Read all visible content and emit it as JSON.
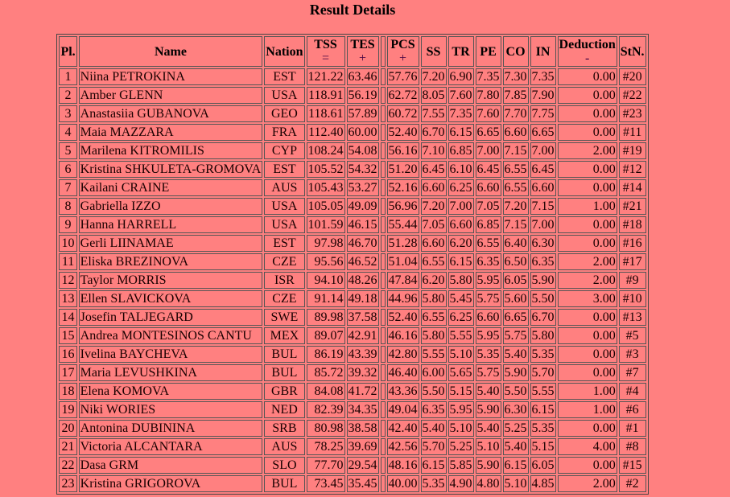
{
  "title": "Result Details",
  "headers": {
    "pl": "Pl.",
    "name": "Name",
    "nation": "Nation",
    "tss": "TSS",
    "tss_sym": "=",
    "tes": "TES",
    "tes_sym": "+",
    "pcs": "PCS",
    "pcs_sym": "+",
    "ss": "SS",
    "tr": "TR",
    "pe": "PE",
    "co": "CO",
    "in": "IN",
    "ded": "Deduction",
    "ded_sym": "-",
    "stn": "StN."
  },
  "rows": [
    {
      "pl": "1",
      "name": "Niina PETROKINA",
      "nation": "EST",
      "tss": "121.22",
      "tes": "63.46",
      "pcs": "57.76",
      "ss": "7.20",
      "tr": "6.90",
      "pe": "7.35",
      "co": "7.30",
      "in": "7.35",
      "ded": "0.00",
      "stn": "#20"
    },
    {
      "pl": "2",
      "name": "Amber GLENN",
      "nation": "USA",
      "tss": "118.91",
      "tes": "56.19",
      "pcs": "62.72",
      "ss": "8.05",
      "tr": "7.60",
      "pe": "7.80",
      "co": "7.85",
      "in": "7.90",
      "ded": "0.00",
      "stn": "#22"
    },
    {
      "pl": "3",
      "name": "Anastasiia GUBANOVA",
      "nation": "GEO",
      "tss": "118.61",
      "tes": "57.89",
      "pcs": "60.72",
      "ss": "7.55",
      "tr": "7.35",
      "pe": "7.60",
      "co": "7.70",
      "in": "7.75",
      "ded": "0.00",
      "stn": "#23"
    },
    {
      "pl": "4",
      "name": "Maia MAZZARA",
      "nation": "FRA",
      "tss": "112.40",
      "tes": "60.00",
      "pcs": "52.40",
      "ss": "6.70",
      "tr": "6.15",
      "pe": "6.65",
      "co": "6.60",
      "in": "6.65",
      "ded": "0.00",
      "stn": "#11"
    },
    {
      "pl": "5",
      "name": "Marilena KITROMILIS",
      "nation": "CYP",
      "tss": "108.24",
      "tes": "54.08",
      "pcs": "56.16",
      "ss": "7.10",
      "tr": "6.85",
      "pe": "7.00",
      "co": "7.15",
      "in": "7.00",
      "ded": "2.00",
      "stn": "#19"
    },
    {
      "pl": "6",
      "name": "Kristina SHKULETA-GROMOVA",
      "nation": "EST",
      "tss": "105.52",
      "tes": "54.32",
      "pcs": "51.20",
      "ss": "6.45",
      "tr": "6.10",
      "pe": "6.45",
      "co": "6.55",
      "in": "6.45",
      "ded": "0.00",
      "stn": "#12"
    },
    {
      "pl": "7",
      "name": "Kailani CRAINE",
      "nation": "AUS",
      "tss": "105.43",
      "tes": "53.27",
      "pcs": "52.16",
      "ss": "6.60",
      "tr": "6.25",
      "pe": "6.60",
      "co": "6.55",
      "in": "6.60",
      "ded": "0.00",
      "stn": "#14"
    },
    {
      "pl": "8",
      "name": "Gabriella IZZO",
      "nation": "USA",
      "tss": "105.05",
      "tes": "49.09",
      "pcs": "56.96",
      "ss": "7.20",
      "tr": "7.00",
      "pe": "7.05",
      "co": "7.20",
      "in": "7.15",
      "ded": "1.00",
      "stn": "#21"
    },
    {
      "pl": "9",
      "name": "Hanna HARRELL",
      "nation": "USA",
      "tss": "101.59",
      "tes": "46.15",
      "pcs": "55.44",
      "ss": "7.05",
      "tr": "6.60",
      "pe": "6.85",
      "co": "7.15",
      "in": "7.00",
      "ded": "0.00",
      "stn": "#18"
    },
    {
      "pl": "10",
      "name": "Gerli LIINAMAE",
      "nation": "EST",
      "tss": "97.98",
      "tes": "46.70",
      "pcs": "51.28",
      "ss": "6.60",
      "tr": "6.20",
      "pe": "6.55",
      "co": "6.40",
      "in": "6.30",
      "ded": "0.00",
      "stn": "#16"
    },
    {
      "pl": "11",
      "name": "Eliska BREZINOVA",
      "nation": "CZE",
      "tss": "95.56",
      "tes": "46.52",
      "pcs": "51.04",
      "ss": "6.55",
      "tr": "6.15",
      "pe": "6.35",
      "co": "6.50",
      "in": "6.35",
      "ded": "2.00",
      "stn": "#17"
    },
    {
      "pl": "12",
      "name": "Taylor MORRIS",
      "nation": "ISR",
      "tss": "94.10",
      "tes": "48.26",
      "pcs": "47.84",
      "ss": "6.20",
      "tr": "5.80",
      "pe": "5.95",
      "co": "6.05",
      "in": "5.90",
      "ded": "2.00",
      "stn": "#9"
    },
    {
      "pl": "13",
      "name": "Ellen SLAVICKOVA",
      "nation": "CZE",
      "tss": "91.14",
      "tes": "49.18",
      "pcs": "44.96",
      "ss": "5.80",
      "tr": "5.45",
      "pe": "5.75",
      "co": "5.60",
      "in": "5.50",
      "ded": "3.00",
      "stn": "#10"
    },
    {
      "pl": "14",
      "name": "Josefin TALJEGARD",
      "nation": "SWE",
      "tss": "89.98",
      "tes": "37.58",
      "pcs": "52.40",
      "ss": "6.55",
      "tr": "6.25",
      "pe": "6.60",
      "co": "6.65",
      "in": "6.70",
      "ded": "0.00",
      "stn": "#13"
    },
    {
      "pl": "15",
      "name": "Andrea MONTESINOS CANTU",
      "nation": "MEX",
      "tss": "89.07",
      "tes": "42.91",
      "pcs": "46.16",
      "ss": "5.80",
      "tr": "5.55",
      "pe": "5.95",
      "co": "5.75",
      "in": "5.80",
      "ded": "0.00",
      "stn": "#5"
    },
    {
      "pl": "16",
      "name": "Ivelina BAYCHEVA",
      "nation": "BUL",
      "tss": "86.19",
      "tes": "43.39",
      "pcs": "42.80",
      "ss": "5.55",
      "tr": "5.10",
      "pe": "5.35",
      "co": "5.40",
      "in": "5.35",
      "ded": "0.00",
      "stn": "#3"
    },
    {
      "pl": "17",
      "name": "Maria LEVUSHKINA",
      "nation": "BUL",
      "tss": "85.72",
      "tes": "39.32",
      "pcs": "46.40",
      "ss": "6.00",
      "tr": "5.65",
      "pe": "5.75",
      "co": "5.90",
      "in": "5.70",
      "ded": "0.00",
      "stn": "#7"
    },
    {
      "pl": "18",
      "name": "Elena KOMOVA",
      "nation": "GBR",
      "tss": "84.08",
      "tes": "41.72",
      "pcs": "43.36",
      "ss": "5.50",
      "tr": "5.15",
      "pe": "5.40",
      "co": "5.50",
      "in": "5.55",
      "ded": "1.00",
      "stn": "#4"
    },
    {
      "pl": "19",
      "name": "Niki WORIES",
      "nation": "NED",
      "tss": "82.39",
      "tes": "34.35",
      "pcs": "49.04",
      "ss": "6.35",
      "tr": "5.95",
      "pe": "5.90",
      "co": "6.30",
      "in": "6.15",
      "ded": "1.00",
      "stn": "#6"
    },
    {
      "pl": "20",
      "name": "Antonina DUBININA",
      "nation": "SRB",
      "tss": "80.98",
      "tes": "38.58",
      "pcs": "42.40",
      "ss": "5.40",
      "tr": "5.10",
      "pe": "5.40",
      "co": "5.25",
      "in": "5.35",
      "ded": "0.00",
      "stn": "#1"
    },
    {
      "pl": "21",
      "name": "Victoria ALCANTARA",
      "nation": "AUS",
      "tss": "78.25",
      "tes": "39.69",
      "pcs": "42.56",
      "ss": "5.70",
      "tr": "5.25",
      "pe": "5.10",
      "co": "5.40",
      "in": "5.15",
      "ded": "4.00",
      "stn": "#8"
    },
    {
      "pl": "22",
      "name": "Dasa GRM",
      "nation": "SLO",
      "tss": "77.70",
      "tes": "29.54",
      "pcs": "48.16",
      "ss": "6.15",
      "tr": "5.85",
      "pe": "5.90",
      "co": "6.15",
      "in": "6.05",
      "ded": "0.00",
      "stn": "#15"
    },
    {
      "pl": "23",
      "name": "Kristina GRIGOROVA",
      "nation": "BUL",
      "tss": "73.45",
      "tes": "35.45",
      "pcs": "40.00",
      "ss": "5.35",
      "tr": "4.90",
      "pe": "4.80",
      "co": "5.10",
      "in": "4.85",
      "ded": "2.00",
      "stn": "#2"
    }
  ]
}
